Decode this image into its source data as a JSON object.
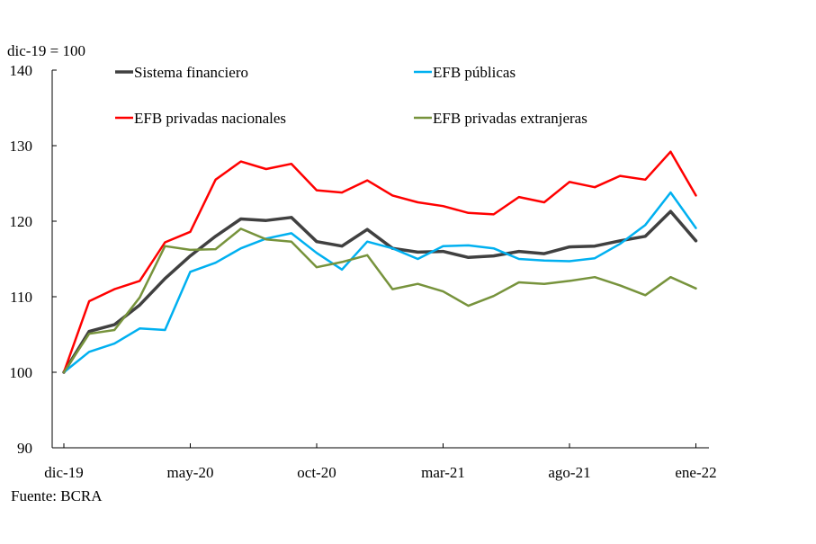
{
  "chart_data": {
    "type": "line",
    "ylabel": "dic-19 = 100",
    "ylim": [
      90,
      140
    ],
    "yticks": [
      "140",
      "130",
      "120",
      "110",
      "100",
      "90"
    ],
    "xtick_labels": [
      "dic-19",
      "may-20",
      "oct-20",
      "mar-21",
      "ago-21",
      "ene-22"
    ],
    "x": [
      "dic-19",
      "ene-20",
      "feb-20",
      "mar-20",
      "abr-20",
      "may-20",
      "jun-20",
      "jul-20",
      "ago-20",
      "sep-20",
      "oct-20",
      "nov-20",
      "dic-20",
      "ene-21",
      "feb-21",
      "mar-21",
      "abr-21",
      "may-21",
      "jun-21",
      "jul-21",
      "ago-21",
      "sep-21",
      "oct-21",
      "nov-21",
      "dic-21",
      "ene-22"
    ],
    "legend_position": "top",
    "series": [
      {
        "name": "Sistema financiero",
        "color": "#404040",
        "values": [
          100,
          105.4,
          106.3,
          108.9,
          112.4,
          115.4,
          118.0,
          120.3,
          120.1,
          120.5,
          117.3,
          116.7,
          118.9,
          116.4,
          115.9,
          116.0,
          115.2,
          115.4,
          116.0,
          115.7,
          116.6,
          116.7,
          117.4,
          118.0,
          121.3,
          117.4
        ]
      },
      {
        "name": "EFB públicas",
        "color": "#00b0f0",
        "values": [
          100,
          102.7,
          103.8,
          105.8,
          105.6,
          113.3,
          114.5,
          116.4,
          117.7,
          118.4,
          115.8,
          113.6,
          117.3,
          116.4,
          115.0,
          116.7,
          116.8,
          116.4,
          115.0,
          114.8,
          114.7,
          115.1,
          117.0,
          119.5,
          123.8,
          119.1
        ]
      },
      {
        "name": "EFB privadas nacionales",
        "color": "#ff0000",
        "values": [
          100,
          109.4,
          111.0,
          112.1,
          117.2,
          118.6,
          125.5,
          127.9,
          126.9,
          127.6,
          124.1,
          123.8,
          125.4,
          123.4,
          122.5,
          122.0,
          121.1,
          120.9,
          123.2,
          122.5,
          125.2,
          124.5,
          126.0,
          125.5,
          129.2,
          123.4
        ]
      },
      {
        "name": "EFB privadas extranjeras",
        "color": "#77933c",
        "values": [
          100,
          105.1,
          105.6,
          109.9,
          116.7,
          116.2,
          116.3,
          119.0,
          117.6,
          117.3,
          113.9,
          114.6,
          115.5,
          111.0,
          111.7,
          110.7,
          108.8,
          110.1,
          111.9,
          111.7,
          112.1,
          112.6,
          111.5,
          110.2,
          112.6,
          111.1
        ]
      }
    ]
  },
  "source": "Fuente: BCRA"
}
